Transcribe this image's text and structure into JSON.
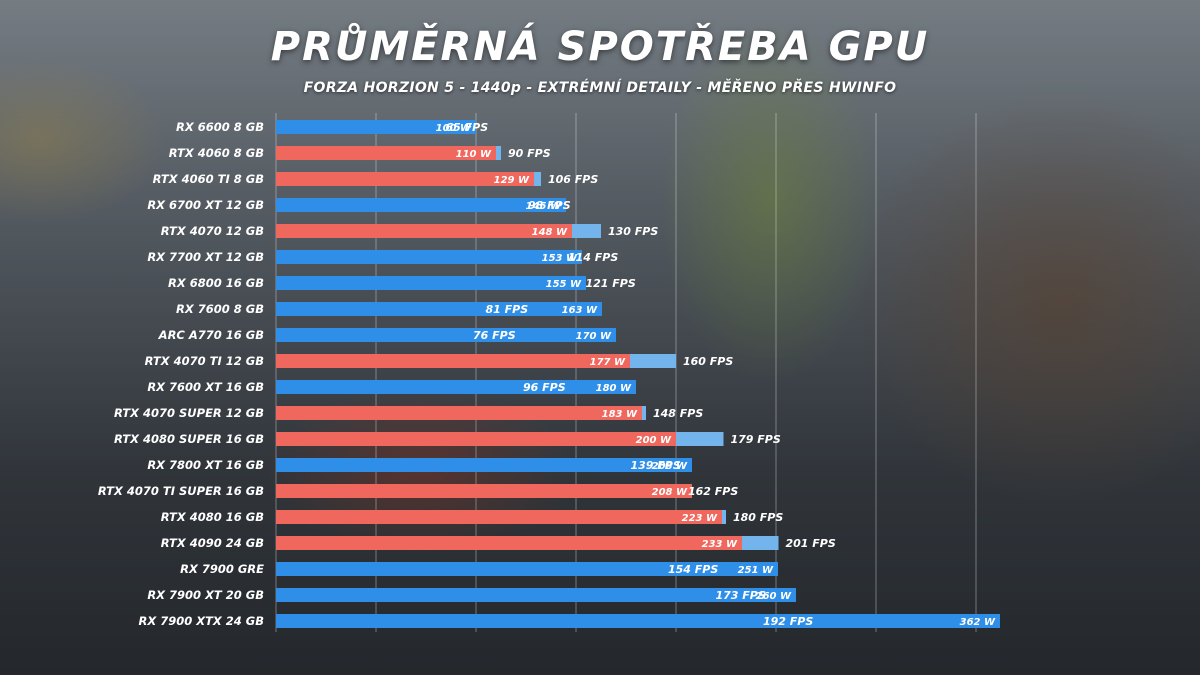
{
  "colors": {
    "amd_watts": "#2f8fe8",
    "nvidia_watts": "#f0675e",
    "intel_watts": "#2f8fe8",
    "fps_bar": "#74b4ec",
    "grid": "rgba(255,255,255,0.35)"
  },
  "chart_data": {
    "type": "bar",
    "orientation": "horizontal",
    "title": "PRŮMĚRNÁ SPOTŘEBA GPU",
    "subtitle": "FORZA HORZION 5 - 1440p - EXTRÉMNÍ DETAILY - MĚŘENO PŘES HWINFO",
    "xlim": [
      0,
      350
    ],
    "grid": true,
    "legend": "none",
    "categories": [
      "RX 6600 8 GB",
      "RTX 4060 8 GB",
      "RTX 4060 TI 8 GB",
      "RX 6700 XT 12 GB",
      "RTX 4070 12 GB",
      "RX 7700 XT 12 GB",
      "RX 6800 16 GB",
      "RX 7600 8 GB",
      "ARC A770 16 GB",
      "RTX 4070 TI 12 GB",
      "RX 7600 XT 16 GB",
      "RTX 4070 SUPER 12 GB",
      "RTX 4080 SUPER 16 GB",
      "RX 7800 XT 16 GB",
      "RTX 4070 TI SUPER 16 GB",
      "RTX 4080 16 GB",
      "RTX 4090 24 GB",
      "RX 7900 GRE",
      "RX 7900 XT 20 GB",
      "RX 7900 XTX 24 GB"
    ],
    "vendor": [
      "amd",
      "nvidia",
      "nvidia",
      "amd",
      "nvidia",
      "amd",
      "amd",
      "amd",
      "intel",
      "nvidia",
      "amd",
      "nvidia",
      "nvidia",
      "amd",
      "nvidia",
      "nvidia",
      "nvidia",
      "amd",
      "amd",
      "amd"
    ],
    "series": [
      {
        "values": [
          100,
          110,
          129,
          145,
          148,
          153,
          155,
          163,
          170,
          177,
          180,
          183,
          200,
          208,
          208,
          223,
          233,
          251,
          260,
          362
        ],
        "labels": [
          "100 W",
          "110 W",
          "129 W",
          "145 W",
          "148 W",
          "153 W",
          "155 W",
          "163 W",
          "170 W",
          "177 W",
          "180 W",
          "183 W",
          "200 W",
          "208 W",
          "208 W",
          "223 W",
          "233 W",
          "251 W",
          "260 W",
          "362 W"
        ]
      },
      {
        "values": [
          65,
          90,
          106,
          98,
          130,
          114,
          121,
          81,
          76,
          160,
          96,
          148,
          179,
          139,
          162,
          180,
          201,
          154,
          173,
          192
        ],
        "labels": [
          "65 FPS",
          "90 FPS",
          "106 FPS",
          "98 FPS",
          "130 FPS",
          "114 FPS",
          "121 FPS",
          "81 FPS",
          "76 FPS",
          "160 FPS",
          "96 FPS",
          "148 FPS",
          "179 FPS",
          "139 FPS",
          "162 FPS",
          "180 FPS",
          "201 FPS",
          "154 FPS",
          "173 FPS",
          "192 FPS"
        ]
      }
    ]
  }
}
